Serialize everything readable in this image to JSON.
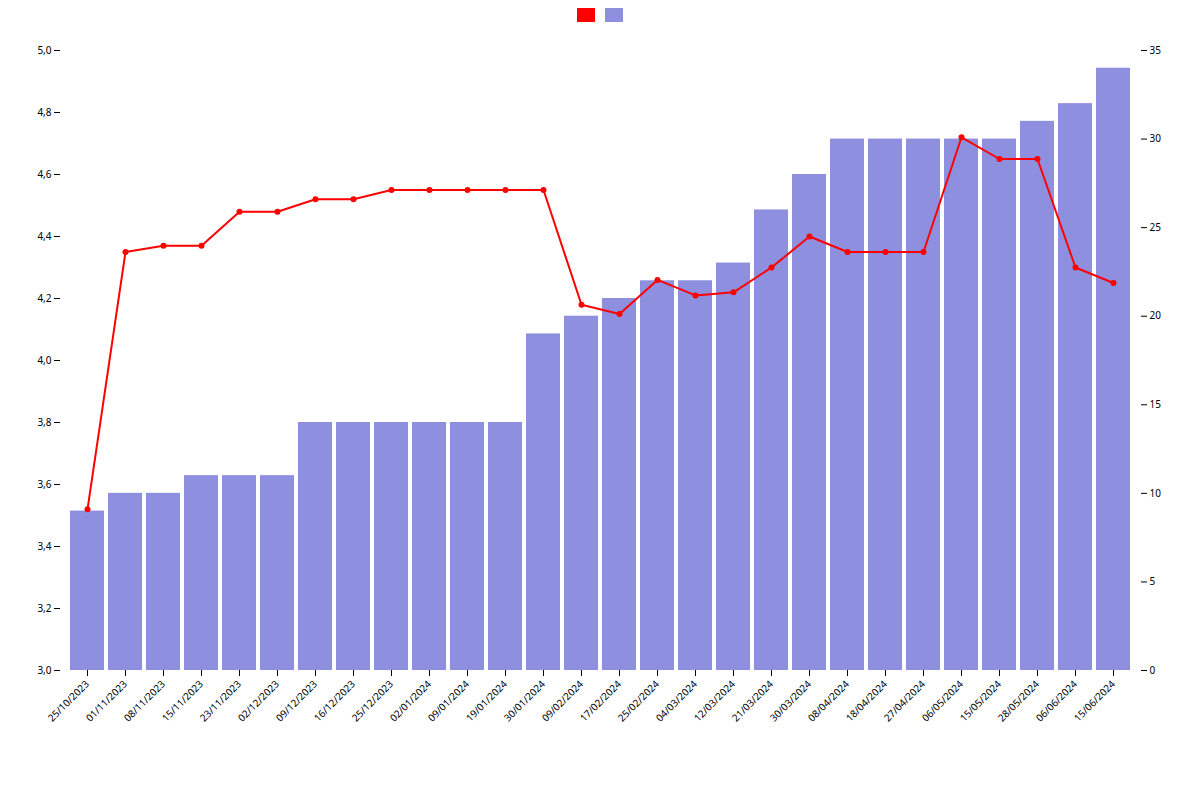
{
  "chart_data": {
    "type": "bar",
    "categories": [
      "25/10/2023",
      "01/11/2023",
      "08/11/2023",
      "15/11/2023",
      "23/11/2023",
      "02/12/2023",
      "09/12/2023",
      "16/12/2023",
      "25/12/2023",
      "02/01/2024",
      "09/01/2024",
      "19/01/2024",
      "30/01/2024",
      "09/02/2024",
      "17/02/2024",
      "25/02/2024",
      "04/03/2024",
      "12/03/2024",
      "21/03/2024",
      "30/03/2024",
      "08/04/2024",
      "18/04/2024",
      "27/04/2024",
      "06/05/2024",
      "15/05/2024",
      "28/05/2024",
      "06/06/2024",
      "15/06/2024"
    ],
    "series": [
      {
        "type": "line",
        "color": "#ff0000",
        "marker": "circle",
        "values": [
          3.52,
          4.35,
          4.37,
          4.37,
          4.48,
          4.48,
          4.52,
          4.52,
          4.55,
          4.55,
          4.55,
          4.55,
          4.55,
          4.18,
          4.15,
          4.26,
          4.21,
          4.22,
          4.3,
          4.4,
          4.35,
          4.35,
          4.35,
          4.72,
          4.65,
          4.65,
          4.3,
          4.25
        ]
      },
      {
        "type": "bar",
        "color": "#7b7bdb",
        "axis": "y2",
        "values": [
          9,
          10,
          10,
          11,
          11,
          11,
          14,
          14,
          14,
          14,
          14,
          14,
          19,
          20,
          21,
          22,
          22,
          23,
          26,
          28,
          30,
          30,
          30,
          30,
          30,
          31,
          32,
          34
        ]
      }
    ],
    "ylim": [
      3.0,
      5.0
    ],
    "yticks": [
      {
        "value": 3.0,
        "label": "3,0"
      },
      {
        "value": 3.2,
        "label": "3,2"
      },
      {
        "value": 3.4,
        "label": "3,4"
      },
      {
        "value": 3.6,
        "label": "3,6"
      },
      {
        "value": 3.8,
        "label": "3,8"
      },
      {
        "value": 4.0,
        "label": "4,0"
      },
      {
        "value": 4.2,
        "label": "4,2"
      },
      {
        "value": 4.4,
        "label": "4,4"
      },
      {
        "value": 4.6,
        "label": "4,6"
      },
      {
        "value": 4.8,
        "label": "4,8"
      },
      {
        "value": 5.0,
        "label": "5,0"
      }
    ],
    "y2lim": [
      0,
      35
    ],
    "y2ticks": [
      0,
      5,
      10,
      15,
      20,
      25,
      30,
      35
    ],
    "grid": false,
    "legend": "top"
  }
}
